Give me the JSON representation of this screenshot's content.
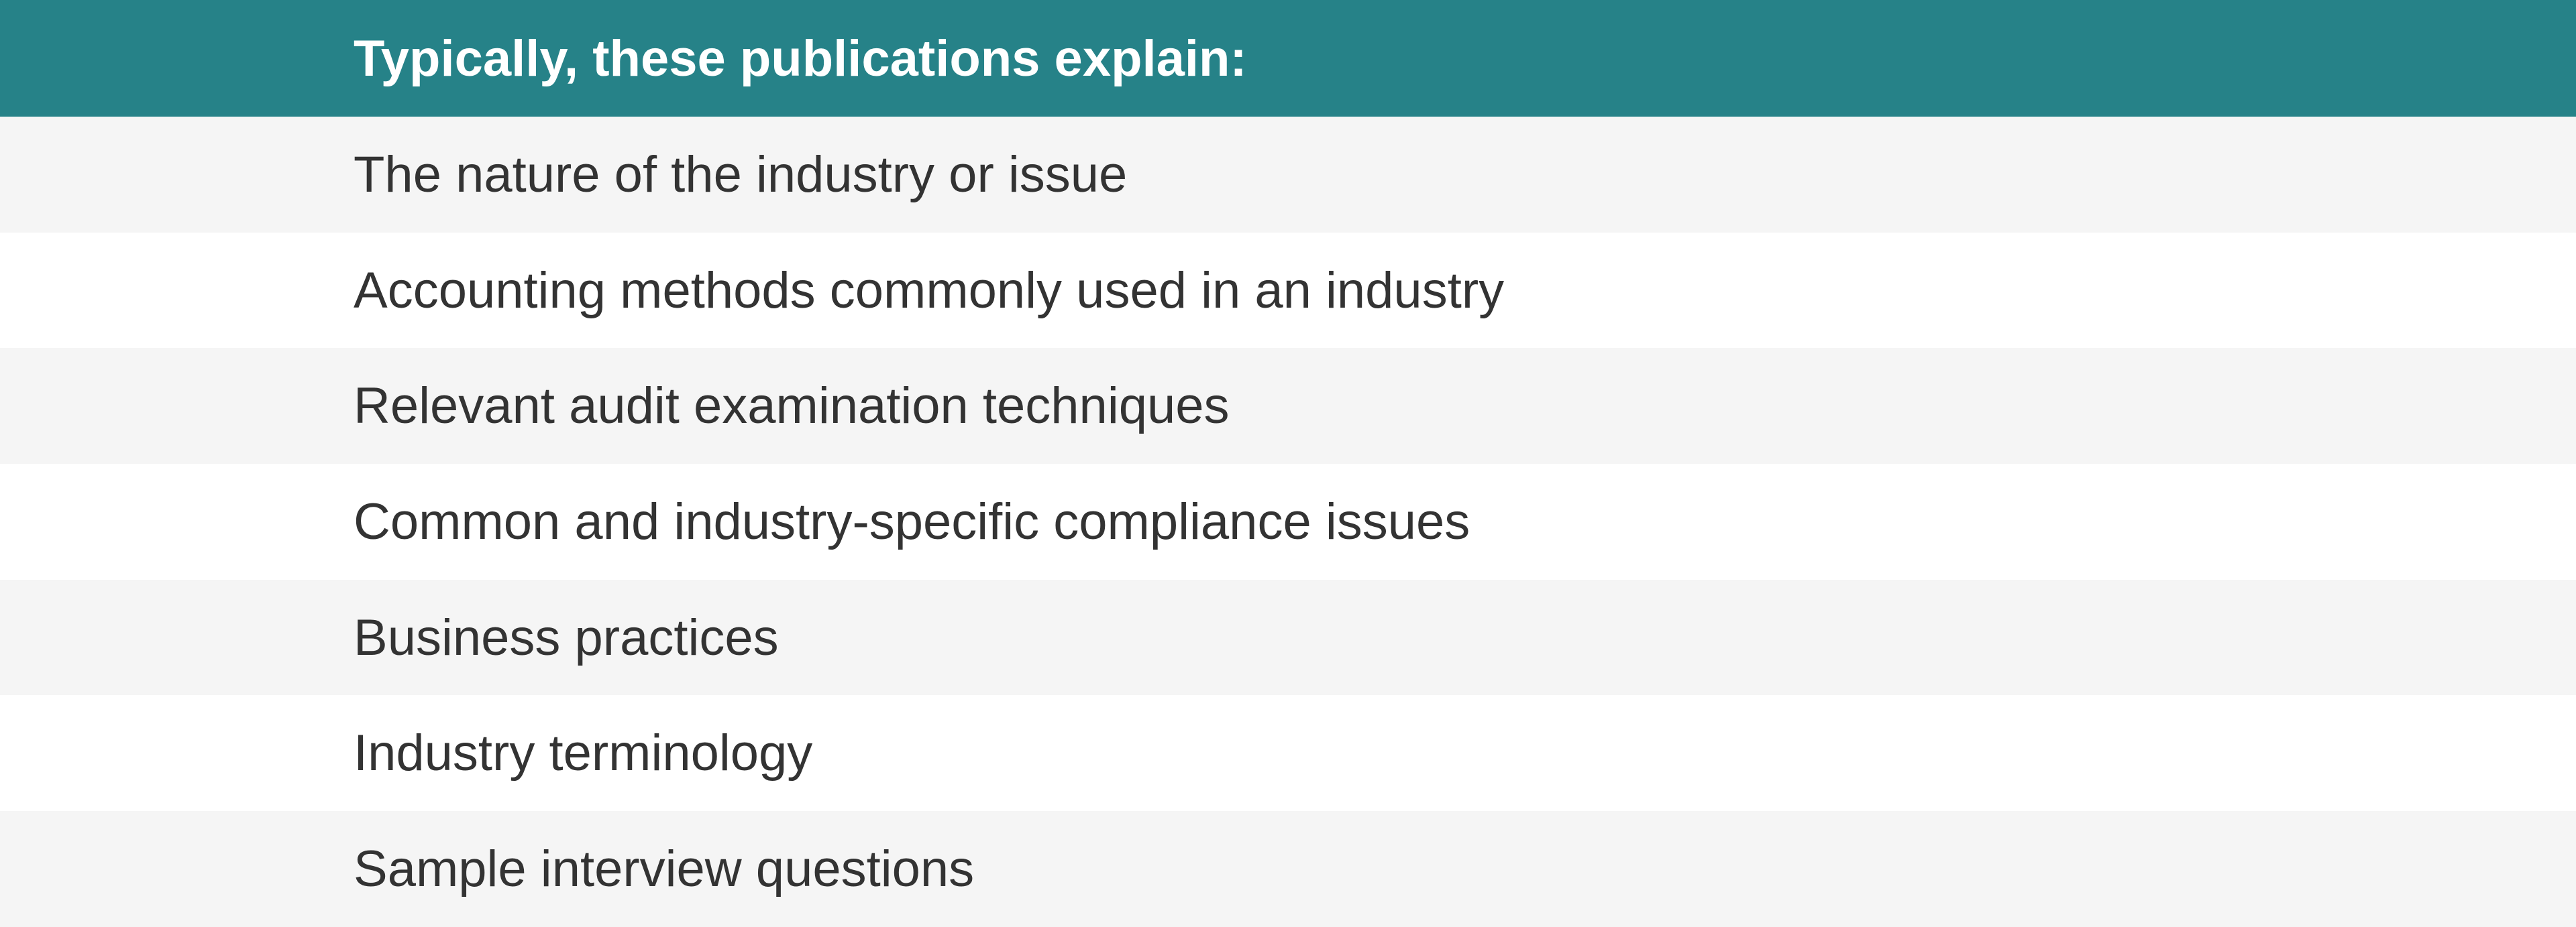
{
  "header": {
    "title": "Typically, these publications explain:"
  },
  "items": [
    "The nature of the industry or issue",
    "Accounting methods commonly used in an industry",
    "Relevant audit examination techniques",
    "Common and industry-specific compliance issues",
    "Business practices",
    "Industry terminology",
    "Sample interview questions"
  ],
  "colors": {
    "header_bg": "#268288",
    "row_alt_bg": "#f5f5f5",
    "text": "#333333"
  }
}
